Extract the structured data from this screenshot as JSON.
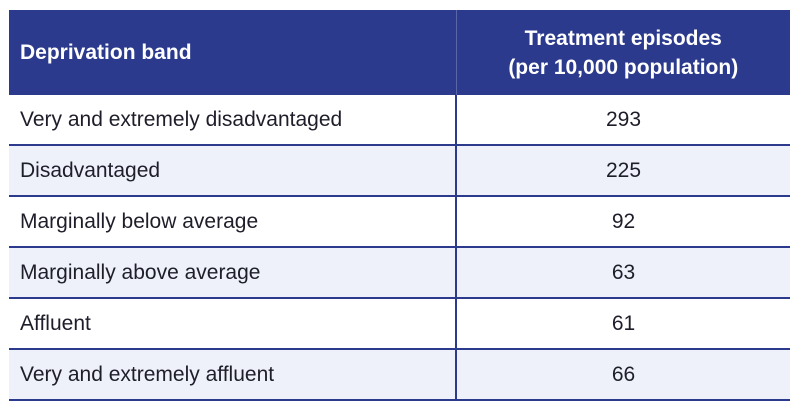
{
  "table": {
    "headers": {
      "band": "Deprivation band",
      "episodes_line1": "Treatment episodes",
      "episodes_line2": "(per 10,000 population)"
    },
    "rows": [
      {
        "band": "Very and extremely disadvantaged",
        "value": "293"
      },
      {
        "band": "Disadvantaged",
        "value": "225"
      },
      {
        "band": "Marginally below average",
        "value": "92"
      },
      {
        "band": "Marginally above average",
        "value": "63"
      },
      {
        "band": "Affluent",
        "value": "61"
      },
      {
        "band": "Very and extremely affluent",
        "value": "66"
      }
    ]
  },
  "colors": {
    "header_bg": "#2b3a8c",
    "row_alt_bg": "#eef0fa",
    "rule": "#2b3a8c"
  }
}
